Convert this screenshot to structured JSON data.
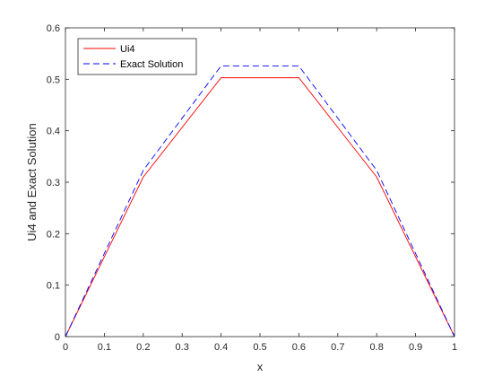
{
  "chart_data": {
    "type": "line",
    "title": "",
    "xlabel": "x",
    "ylabel": "Ui4 and Exact Solution",
    "xlim": [
      0,
      1
    ],
    "ylim": [
      0,
      0.6
    ],
    "xticks": [
      0,
      0.1,
      0.2,
      0.3,
      0.4,
      0.5,
      0.6,
      0.7,
      0.8,
      0.9,
      1
    ],
    "xtick_labels": [
      "0",
      "0.1",
      "0.2",
      "0.3",
      "0.4",
      "0.5",
      "0.6",
      "0.7",
      "0.8",
      "0.9",
      "1"
    ],
    "yticks": [
      0,
      0.1,
      0.2,
      0.3,
      0.4,
      0.5,
      0.6
    ],
    "ytick_labels": [
      "0",
      "0.1",
      "0.2",
      "0.3",
      "0.4",
      "0.5",
      "0.6"
    ],
    "grid": false,
    "legend_position": "top-left",
    "x": [
      0,
      0.2,
      0.4,
      0.6,
      0.8,
      1.0
    ],
    "series": [
      {
        "name": "Ui4",
        "values": [
          0,
          0.31,
          0.503,
          0.503,
          0.31,
          0
        ],
        "color": "#ff0000",
        "style": "solid"
      },
      {
        "name": "Exact Solution",
        "values": [
          0,
          0.323,
          0.526,
          0.526,
          0.323,
          0
        ],
        "color": "#0000ff",
        "style": "dashed"
      }
    ]
  }
}
